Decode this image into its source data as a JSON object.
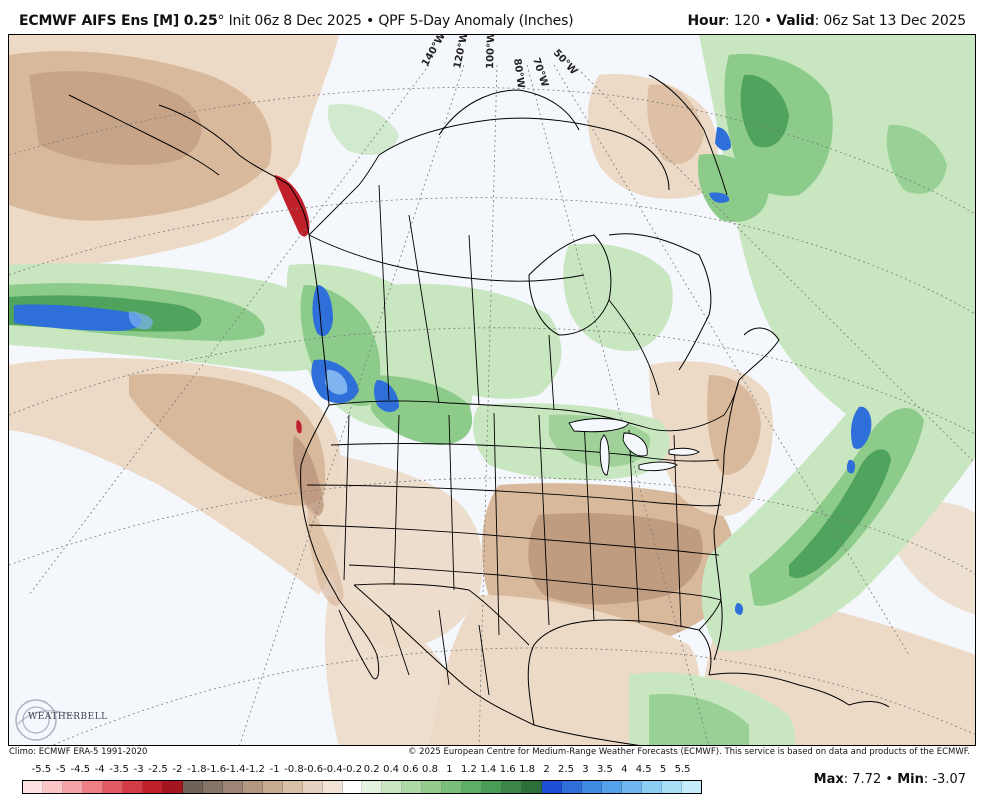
{
  "header": {
    "model": "ECMWF AIFS Ens [M] 0.25",
    "degree": "°",
    "init": "Init 06z 8 Dec 2025",
    "sep": "•",
    "product": "QPF 5-Day Anomaly (Inches)",
    "hour_label": "Hour",
    "hour_value": "120",
    "valid_label": "Valid",
    "valid_value": "06z Sat 13 Dec 2025"
  },
  "map": {
    "meridian_labels": [
      "140°W",
      "120°W",
      "100°W",
      "80°W",
      "70°W",
      "50°W"
    ],
    "colors": {
      "ocean": "#f4f7fc",
      "dry_light": "#ecd9c6",
      "dry_mid": "#d9b99c",
      "dry_dark": "#b89379",
      "dry_strong": "#a8806a",
      "wet_light": "#c8e6c0",
      "wet_mid": "#8ccb8a",
      "wet_dark": "#4fa35c",
      "wet_strong": "#2f7d45",
      "blue": "#2e6fd9",
      "blue_light": "#7fb4f0",
      "red": "#c0202a",
      "border": "#000000",
      "grid": "#7a7a7a"
    }
  },
  "credits": {
    "climo": "Climo: ECMWF ERA-5 1991-2020",
    "copyright": "© 2025 European Centre for Medium-Range Weather Forecasts (ECMWF). This service is based on data and products of the ECMWF."
  },
  "logo": {
    "text": "WEATHERBELL"
  },
  "colorbar": {
    "labels": [
      "-5.5",
      "-5",
      "-4.5",
      "-4",
      "-3.5",
      "-3",
      "-2.5",
      "-2",
      "-1.8",
      "-1.6",
      "-1.4",
      "-1.2",
      "-1",
      "-0.8",
      "-0.6",
      "-0.4",
      "-0.2",
      "0.2",
      "0.4",
      "0.6",
      "0.8",
      "1",
      "1.2",
      "1.4",
      "1.6",
      "1.8",
      "2",
      "2.5",
      "3",
      "3.5",
      "4",
      "4.5",
      "5",
      "5.5"
    ],
    "colors": [
      "#fde3e3",
      "#fbc6c8",
      "#f5a3a6",
      "#ee7f84",
      "#e35c63",
      "#d43c45",
      "#c0202a",
      "#a3151f",
      "#6e6259",
      "#857468",
      "#9c8574",
      "#b29882",
      "#c7ab93",
      "#d8bfa8",
      "#e6d2c0",
      "#f1e3d6",
      "#ffffff",
      "#e4f3df",
      "#c8e6c0",
      "#aed9a6",
      "#95cc8e",
      "#7abf79",
      "#5fae65",
      "#4a9b55",
      "#3a8547",
      "#2c6f3b",
      "#1f4fd6",
      "#2e6fd9",
      "#3f8ae2",
      "#55a2ea",
      "#6fb9f0",
      "#8ccdf4",
      "#a9def7",
      "#c6ecfa"
    ]
  },
  "stats": {
    "max_label": "Max",
    "max_value": "7.72",
    "min_label": "Min",
    "min_value": "-3.07",
    "sep": "•"
  }
}
